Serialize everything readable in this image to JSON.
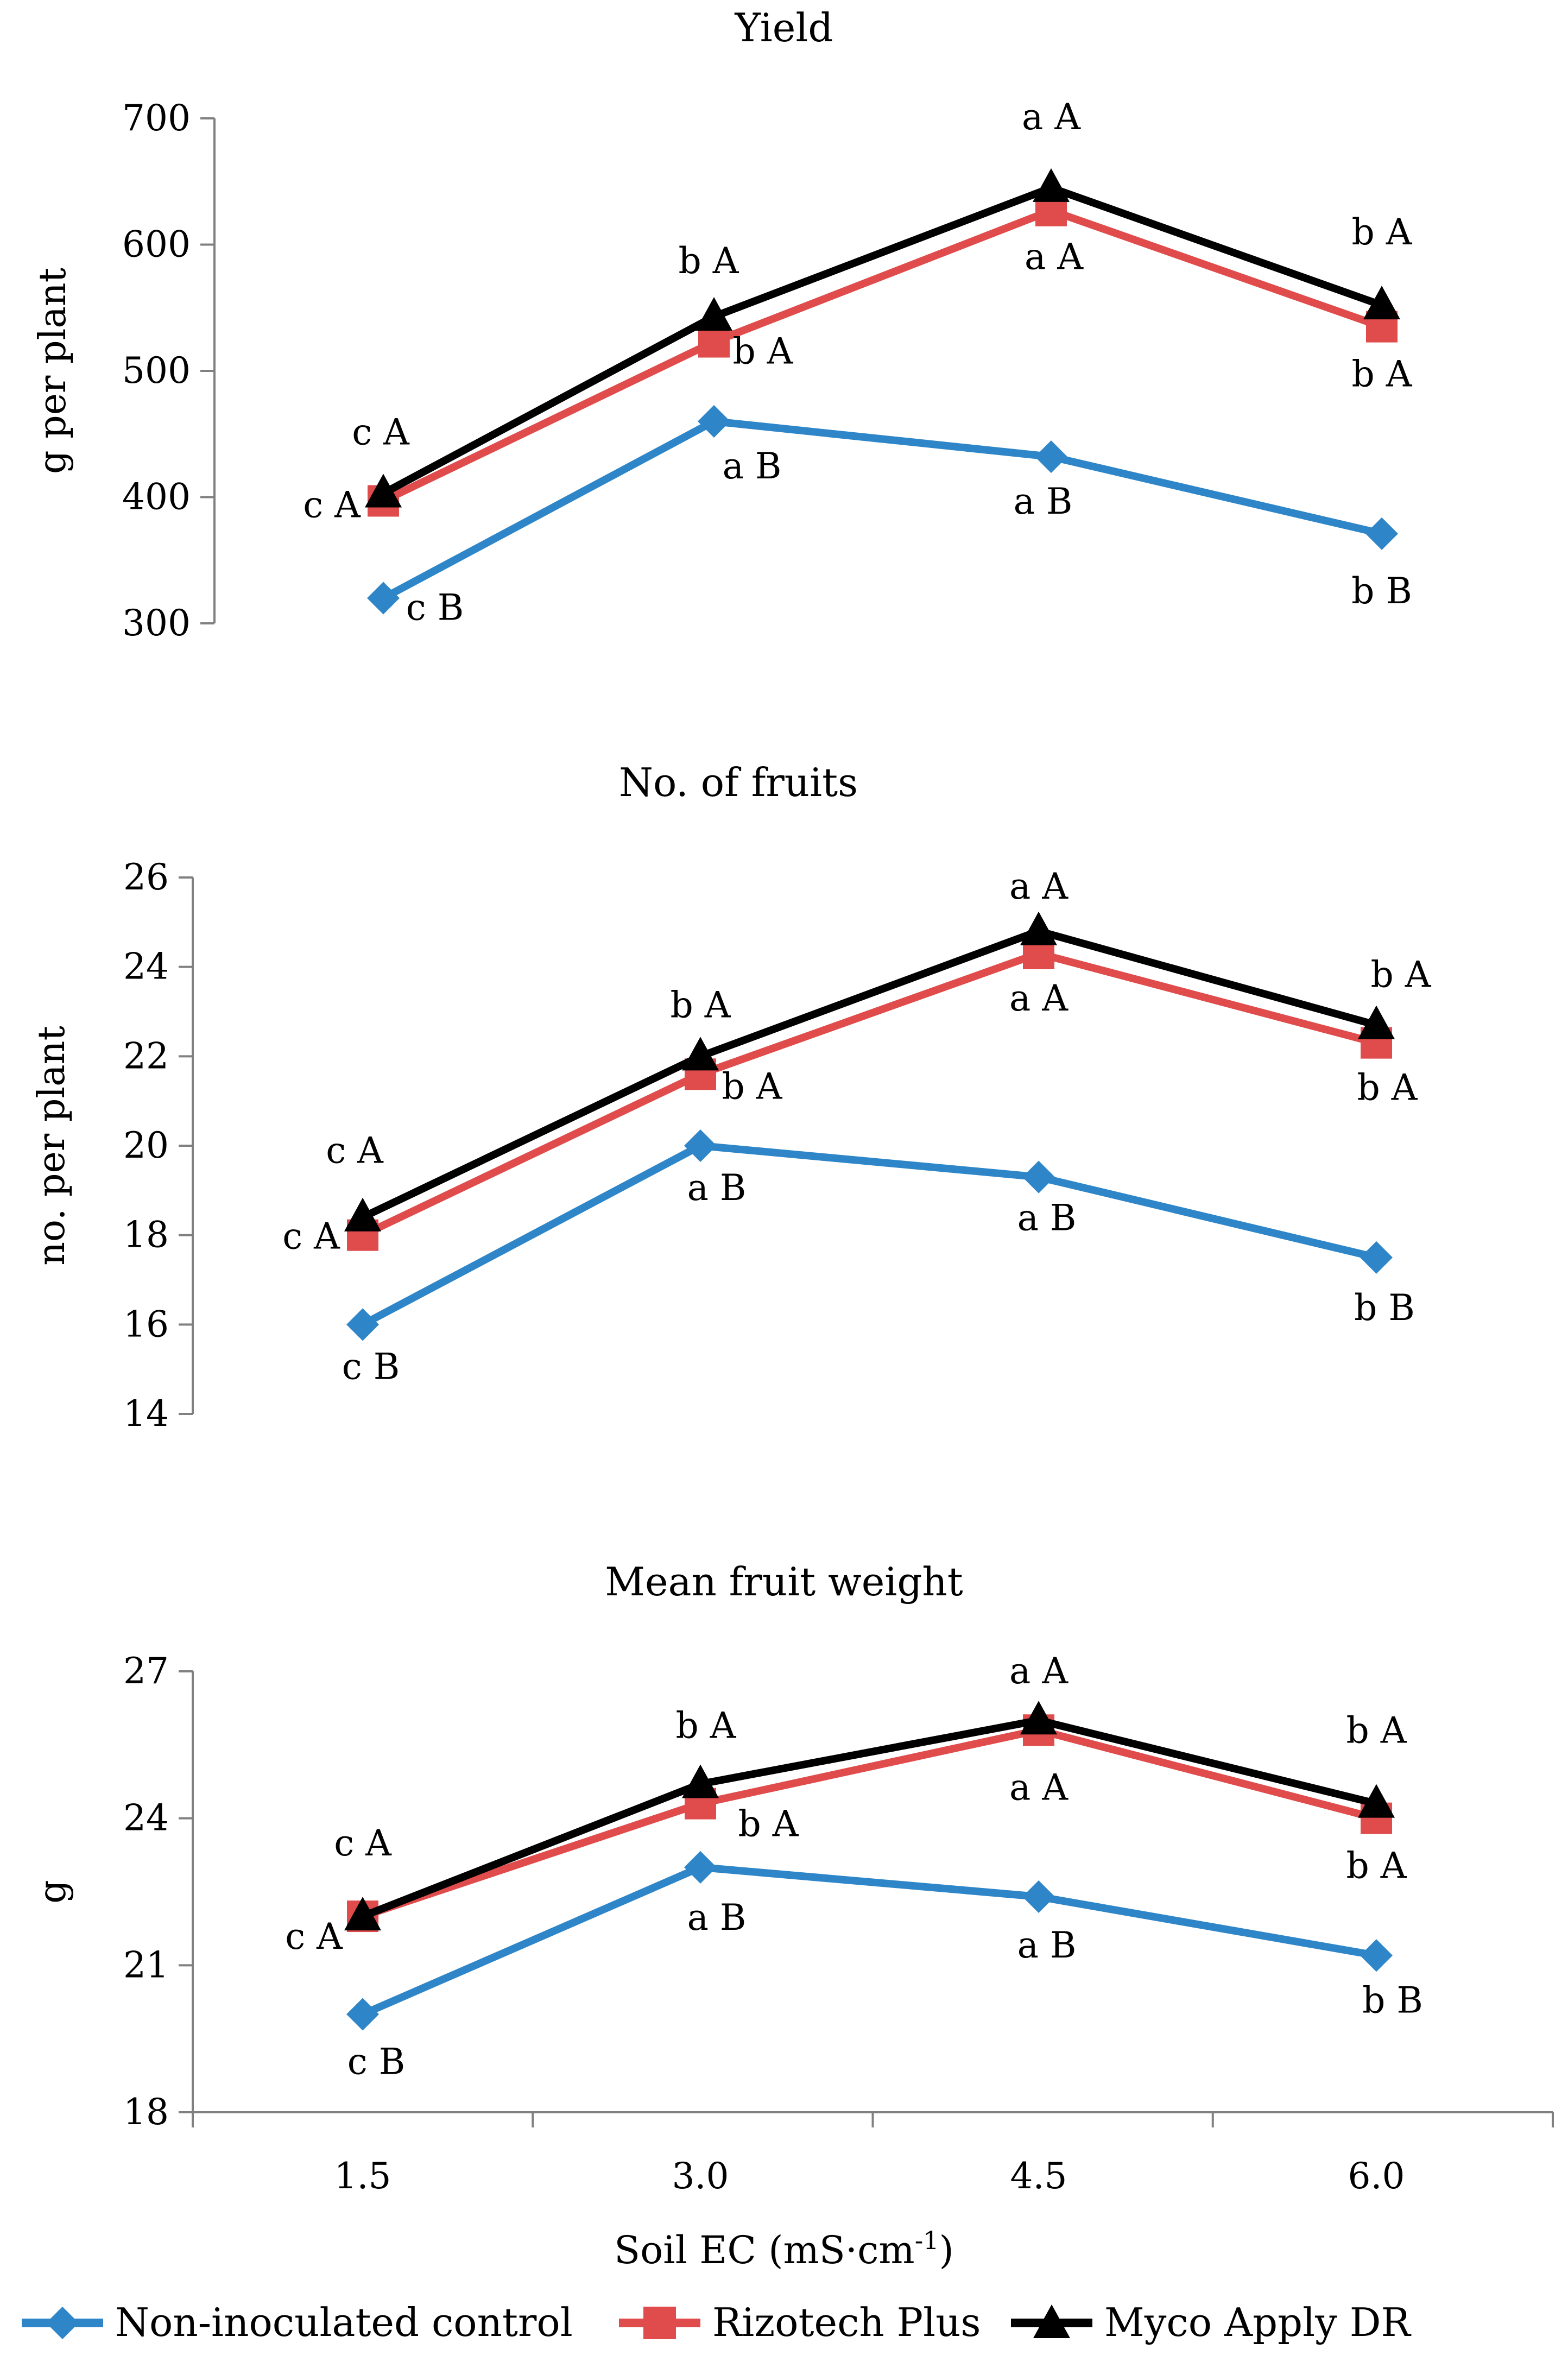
{
  "chart_data": [
    {
      "type": "line",
      "title": "Yield",
      "ylabel": "g per plant",
      "xlabel": "",
      "categories": [
        "1.5",
        "3.0",
        "4.5",
        "6.0"
      ],
      "ylim": [
        300,
        700
      ],
      "yticks": [
        "300",
        "400",
        "500",
        "600",
        "700"
      ],
      "series": [
        {
          "name": "Non-inoculated control",
          "color": "#2e86c8",
          "marker": "diamond",
          "values": [
            320,
            460,
            432,
            371
          ],
          "labels": [
            "c B",
            "a B",
            "a B",
            "b B"
          ]
        },
        {
          "name": "Rizotech Plus",
          "color": "#e04b4b",
          "marker": "square",
          "values": [
            397,
            523,
            627,
            535
          ],
          "labels": [
            "c A",
            "b A",
            "a A",
            "b A"
          ]
        },
        {
          "name": "Myco Apply DR",
          "color": "#000000",
          "marker": "triangle",
          "values": [
            403,
            543,
            645,
            552
          ],
          "labels": [
            "c A",
            "b A",
            "a A",
            "b A"
          ]
        }
      ]
    },
    {
      "type": "line",
      "title": "No. of fruits",
      "ylabel": "no. per plant",
      "xlabel": "",
      "categories": [
        "1.5",
        "3.0",
        "4.5",
        "6.0"
      ],
      "ylim": [
        14,
        26
      ],
      "yticks": [
        "14",
        "16",
        "18",
        "20",
        "22",
        "24",
        "26"
      ],
      "series": [
        {
          "name": "Non-inoculated control",
          "color": "#2e86c8",
          "marker": "diamond",
          "values": [
            16.0,
            20.0,
            19.3,
            17.5
          ],
          "labels": [
            "c B",
            "a B",
            "a B",
            "b B"
          ]
        },
        {
          "name": "Rizotech Plus",
          "color": "#e04b4b",
          "marker": "square",
          "values": [
            18.0,
            21.6,
            24.3,
            22.3
          ],
          "labels": [
            "c A",
            "b A",
            "a A",
            "b A"
          ]
        },
        {
          "name": "Myco Apply DR",
          "color": "#000000",
          "marker": "triangle",
          "values": [
            18.4,
            22.0,
            24.8,
            22.7
          ],
          "labels": [
            "c A",
            "b A",
            "a A",
            "b A"
          ]
        }
      ]
    },
    {
      "type": "line",
      "title": "Mean fruit weight",
      "ylabel": "g",
      "xlabel": "Soil EC (mS·cm-1)",
      "categories": [
        "1.5",
        "3.0",
        "4.5",
        "6.0"
      ],
      "ylim": [
        18,
        27
      ],
      "yticks": [
        "18",
        "21",
        "24",
        "27"
      ],
      "series": [
        {
          "name": "Non-inoculated control",
          "color": "#2e86c8",
          "marker": "diamond",
          "values": [
            20.0,
            23.0,
            22.4,
            21.2
          ],
          "labels": [
            "c B",
            "a B",
            "a B",
            "b B"
          ]
        },
        {
          "name": "Rizotech Plus",
          "color": "#e04b4b",
          "marker": "square",
          "values": [
            22.0,
            24.3,
            25.8,
            24.0
          ],
          "labels": [
            "c A",
            "b A",
            "a A",
            "b A"
          ]
        },
        {
          "name": "Myco Apply DR",
          "color": "#000000",
          "marker": "triangle",
          "values": [
            22.0,
            24.7,
            26.0,
            24.3
          ],
          "labels": [
            "c A",
            "b A",
            "a A",
            "b A"
          ]
        }
      ]
    }
  ],
  "xaxis": {
    "label_main": "Soil EC (mS·cm",
    "label_sup": "-1",
    "label_close": ")"
  },
  "legend": {
    "position": "bottom",
    "entries": [
      {
        "name": "Non-inoculated control",
        "color": "#2e86c8",
        "marker": "diamond"
      },
      {
        "name": "Rizotech Plus",
        "color": "#e04b4b",
        "marker": "square"
      },
      {
        "name": "Myco Apply DR",
        "color": "#000000",
        "marker": "triangle"
      }
    ]
  }
}
